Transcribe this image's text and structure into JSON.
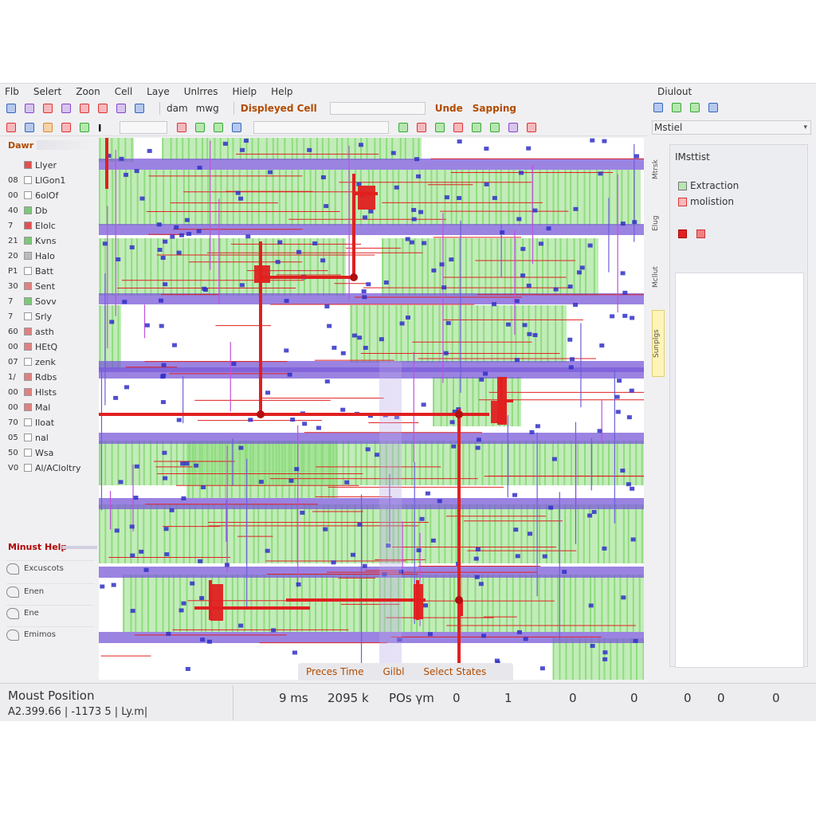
{
  "menu": [
    "Flb",
    "Selert",
    "Zoon",
    "Cell",
    "Laye",
    "Unlrres",
    "Hielp",
    "Help"
  ],
  "right_title": "Diulout",
  "toolbar": {
    "dam": "dam",
    "mwg": "mwg",
    "displayed_cell": "Displeyed Cell",
    "undo": "Unde",
    "snapping": "Sapping"
  },
  "right_select": "Mstiel",
  "left": {
    "header": "Dawr",
    "layers": [
      {
        "num": "",
        "label": "Llyer",
        "color": "#e05050"
      },
      {
        "num": "08",
        "label": "LlGon1",
        "color": "#ffffff"
      },
      {
        "num": "00",
        "label": "6olOf",
        "color": "#ffffff"
      },
      {
        "num": "40",
        "label": "Db",
        "color": "#7cc87a"
      },
      {
        "num": "7",
        "label": "Elolc",
        "color": "#e05050"
      },
      {
        "num": "21",
        "label": "Kvns",
        "color": "#7cc87a"
      },
      {
        "num": "20",
        "label": "Halo",
        "color": "#bbbbbb"
      },
      {
        "num": "P1",
        "label": "Batt",
        "color": "#ffffff"
      },
      {
        "num": "30",
        "label": "Sent",
        "color": "#e08080"
      },
      {
        "num": "7",
        "label": "Sovv",
        "color": "#7cc87a"
      },
      {
        "num": "7",
        "label": "Srly",
        "color": "#ffffff"
      },
      {
        "num": "60",
        "label": "asth",
        "color": "#e08080"
      },
      {
        "num": "00",
        "label": "HEtQ",
        "color": "#e08080"
      },
      {
        "num": "07",
        "label": "zenk",
        "color": "#ffffff"
      },
      {
        "num": "1/",
        "label": "Rdbs",
        "color": "#e08080"
      },
      {
        "num": "00",
        "label": "Hlsts",
        "color": "#e08080"
      },
      {
        "num": "00",
        "label": "Mal",
        "color": "#e08080"
      },
      {
        "num": "70",
        "label": "Iloat",
        "color": "#ffffff"
      },
      {
        "num": "05",
        "label": "nal",
        "color": "#ffffff"
      },
      {
        "num": "50",
        "label": "Wsa",
        "color": "#ffffff"
      },
      {
        "num": "V0",
        "label": "Al/ACloltry",
        "color": "#ffffff"
      }
    ],
    "help_header": "Minust Help",
    "help_items": [
      "Excuscots",
      "Enen",
      "Ene",
      "Emimos"
    ]
  },
  "canvas_bar": {
    "process_time": "Preces Time",
    "gilbl": "Gilbl",
    "select_states": "Select States"
  },
  "right_panel": {
    "title": "IMsttist",
    "items": [
      "Extraction",
      "molistion"
    ],
    "vtabs": [
      "Mtrsk",
      "Elug",
      "Mcllut",
      "Sunplgs"
    ]
  },
  "status": {
    "label": "Moust Position",
    "coord": "A2.399.66 | -1173 5 | Ly.m|",
    "values": [
      {
        "text": "9 ms",
        "left": 350
      },
      {
        "text": "2095 k",
        "left": 411
      },
      {
        "text": "POs γm",
        "left": 488
      },
      {
        "text": "0",
        "left": 568
      },
      {
        "text": "1",
        "left": 633
      },
      {
        "text": "0",
        "left": 714
      },
      {
        "text": "0",
        "left": 791
      },
      {
        "text": "0",
        "left": 858
      },
      {
        "text": "0",
        "left": 900
      },
      {
        "text": "0",
        "left": 969
      }
    ]
  },
  "colors": {
    "metal_purple": "#7a5ad8",
    "poly_red": "#e02020",
    "diff_green": "#8fdc7f",
    "via_blue": "#3030c8",
    "accent_orange": "#b24b00"
  }
}
